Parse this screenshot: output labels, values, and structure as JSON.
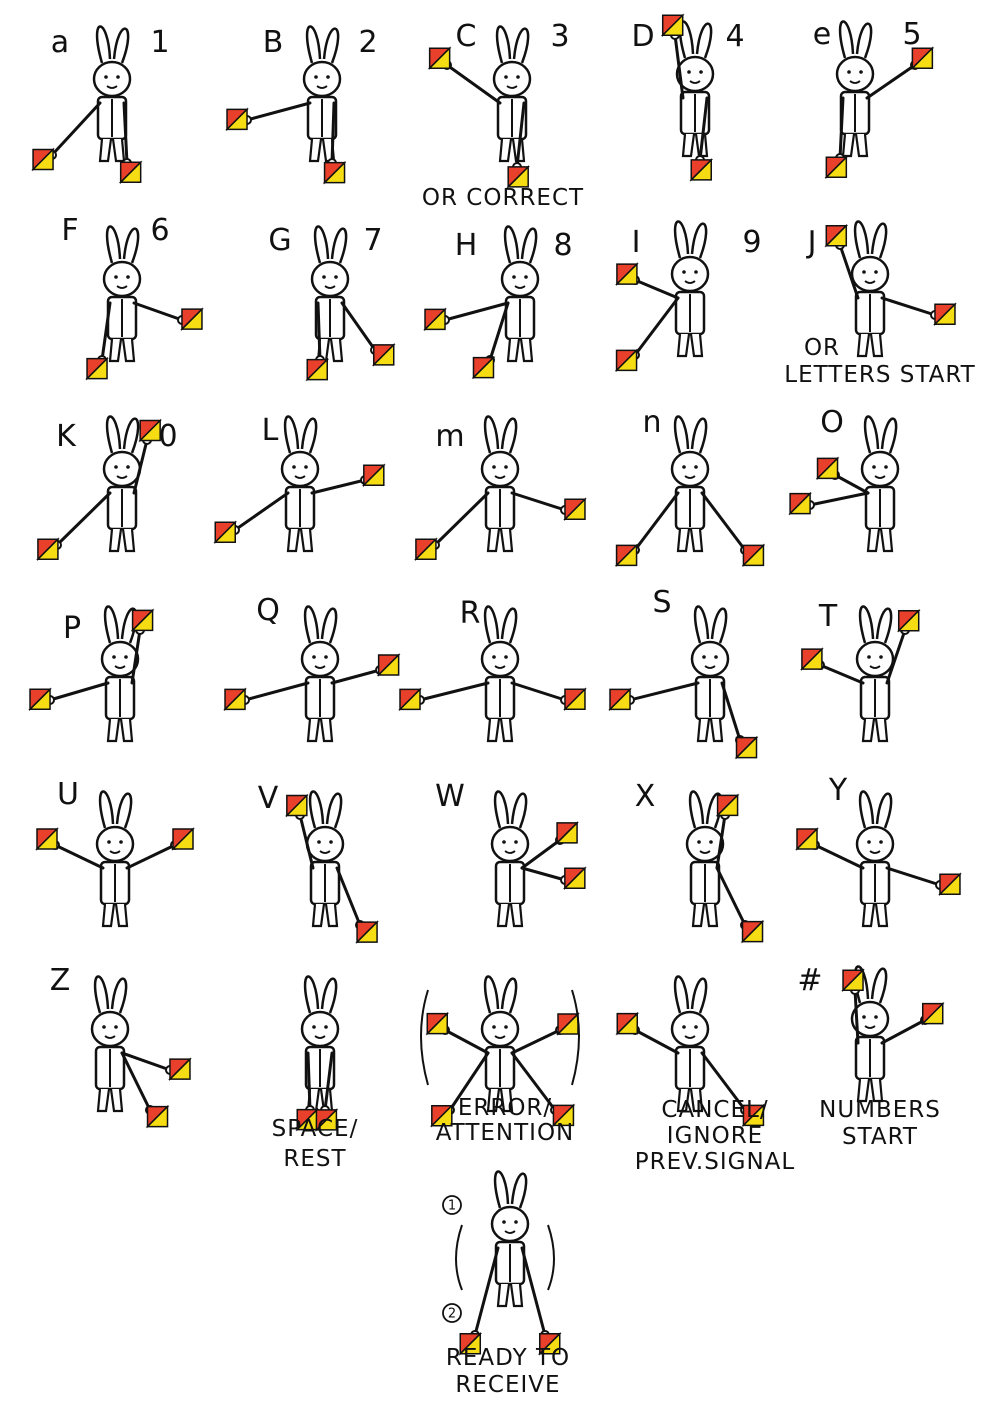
{
  "colors": {
    "flag_red": "#e8402a",
    "flag_yellow": "#f6dc12",
    "ink": "#111111",
    "paper": "#ffffff"
  },
  "signals": [
    {
      "letter": "a",
      "number": "1",
      "caption": []
    },
    {
      "letter": "B",
      "number": "2",
      "caption": []
    },
    {
      "letter": "C",
      "number": "3",
      "caption": [
        "OR CORRECT"
      ]
    },
    {
      "letter": "D",
      "number": "4",
      "caption": []
    },
    {
      "letter": "e",
      "number": "5",
      "caption": []
    },
    {
      "letter": "F",
      "number": "6",
      "caption": []
    },
    {
      "letter": "G",
      "number": "7",
      "caption": []
    },
    {
      "letter": "H",
      "number": "8",
      "caption": []
    },
    {
      "letter": "I",
      "number": "9",
      "caption": []
    },
    {
      "letter": "J",
      "number": "",
      "caption": [
        "OR",
        "LETTERS START"
      ]
    },
    {
      "letter": "K",
      "number": "0",
      "caption": []
    },
    {
      "letter": "L",
      "number": "",
      "caption": []
    },
    {
      "letter": "m",
      "number": "",
      "caption": []
    },
    {
      "letter": "n",
      "number": "",
      "caption": []
    },
    {
      "letter": "O",
      "number": "",
      "caption": []
    },
    {
      "letter": "P",
      "number": "",
      "caption": []
    },
    {
      "letter": "Q",
      "number": "",
      "caption": []
    },
    {
      "letter": "R",
      "number": "",
      "caption": []
    },
    {
      "letter": "S",
      "number": "",
      "caption": []
    },
    {
      "letter": "T",
      "number": "",
      "caption": []
    },
    {
      "letter": "U",
      "number": "",
      "caption": []
    },
    {
      "letter": "V",
      "number": "",
      "caption": []
    },
    {
      "letter": "W",
      "number": "",
      "caption": []
    },
    {
      "letter": "X",
      "number": "",
      "caption": []
    },
    {
      "letter": "Y",
      "number": "",
      "caption": []
    },
    {
      "letter": "Z",
      "number": "",
      "caption": []
    },
    {
      "letter": "",
      "number": "",
      "caption": [
        "SPACE/",
        "REST"
      ]
    },
    {
      "letter": "",
      "number": "",
      "caption": [
        "ERROR/",
        "ATTENTION"
      ]
    },
    {
      "letter": "",
      "number": "",
      "caption": [
        "CANCEL/",
        "IGNORE",
        "PREV.SIGNAL"
      ]
    },
    {
      "letter": "#",
      "number": "",
      "caption": [
        "NUMBERS",
        "START"
      ]
    },
    {
      "letter": "",
      "number": "",
      "caption": [
        "READY TO",
        "RECEIVE"
      ]
    }
  ],
  "step_markers": [
    "1",
    "2"
  ]
}
